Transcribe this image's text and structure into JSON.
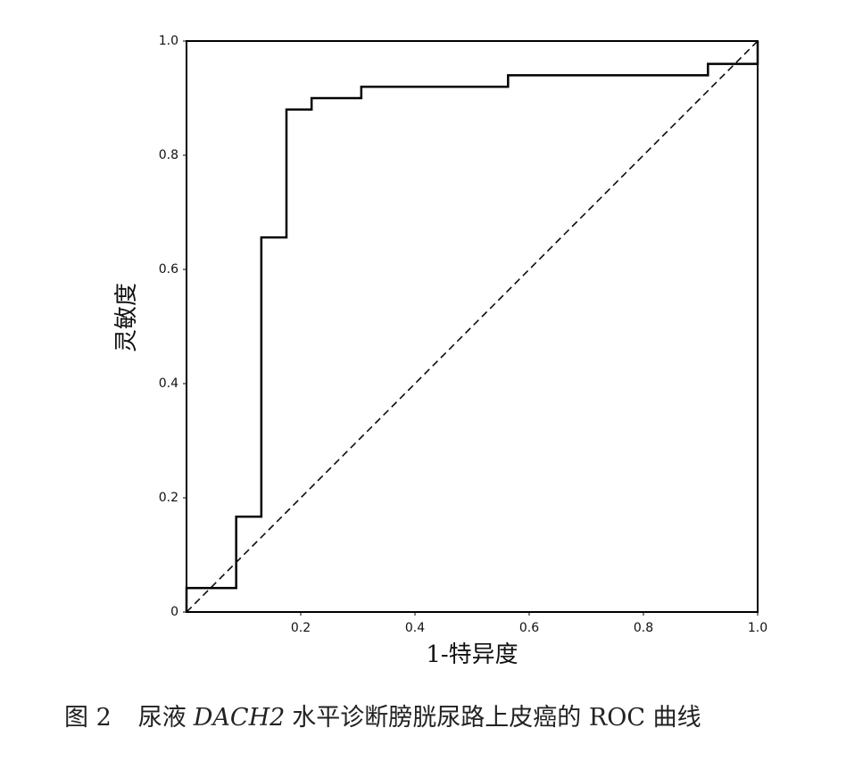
{
  "chart_data": {
    "type": "line",
    "x_label": "1-特异度",
    "y_label": "灵敏度",
    "caption": [
      "图 2",
      "尿液",
      "DACH2",
      "水平诊断膀胱尿路上皮癌的 ROC 曲线"
    ],
    "xlim": [
      0,
      1
    ],
    "ylim": [
      0,
      1
    ],
    "xticks": [
      0.2,
      0.4,
      0.6,
      0.8,
      {
        "value": 1,
        "label": "1.0"
      }
    ],
    "yticks": [
      0,
      0.2,
      0.4,
      0.6,
      0.8,
      {
        "value": 1,
        "label": "1.0"
      }
    ],
    "series": [
      {
        "color": "#000000",
        "style": "solid",
        "x": [
          0,
          0,
          0.087,
          0.087,
          0.131,
          0.131,
          0.175,
          0.175,
          0.219,
          0.219,
          0.306,
          0.306,
          0.563,
          0.563,
          0.913,
          0.913,
          1,
          1
        ],
        "values": [
          0,
          0.042,
          0.042,
          0.167,
          0.167,
          0.656,
          0.656,
          0.88,
          0.88,
          0.9,
          0.9,
          0.92,
          0.92,
          0.94,
          0.94,
          0.96,
          0.96,
          1
        ]
      },
      {
        "color": "#000000",
        "style": "dashed",
        "x": [
          0,
          1
        ],
        "values": [
          0,
          1
        ]
      }
    ]
  }
}
